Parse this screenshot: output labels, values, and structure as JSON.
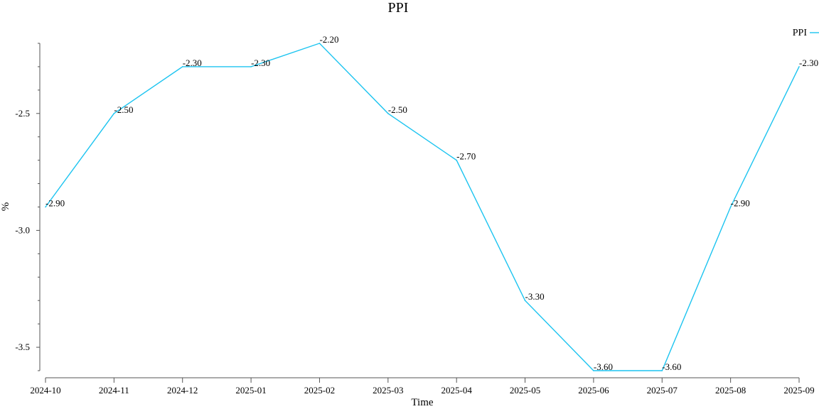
{
  "chart_data": {
    "type": "line",
    "title": "PPI",
    "xlabel": "Time",
    "ylabel": "%",
    "categories": [
      "2024-10",
      "2024-11",
      "2024-12",
      "2025-01",
      "2025-02",
      "2025-03",
      "2025-04",
      "2025-05",
      "2025-06",
      "2025-07",
      "2025-08",
      "2025-09"
    ],
    "series": [
      {
        "name": "PPI",
        "color": "#1cc4f0",
        "values": [
          -2.9,
          -2.5,
          -2.3,
          -2.3,
          -2.2,
          -2.5,
          -2.7,
          -3.3,
          -3.6,
          -3.6,
          -2.9,
          -2.3
        ],
        "data_labels": [
          "-2.90",
          "-2.50",
          "-2.30",
          "-2.30",
          "-2.20",
          "-2.50",
          "-2.70",
          "-3.30",
          "-3.60",
          "-3.60",
          "-2.90",
          "-2.30"
        ]
      }
    ],
    "yticks": [
      -2.5,
      -3.0,
      -3.5
    ],
    "ytick_labels": [
      "-2.5",
      "-3.0",
      "-3.5"
    ],
    "ylim": [
      -3.6,
      -2.2
    ],
    "grid": false,
    "legend_position": "top-right"
  }
}
